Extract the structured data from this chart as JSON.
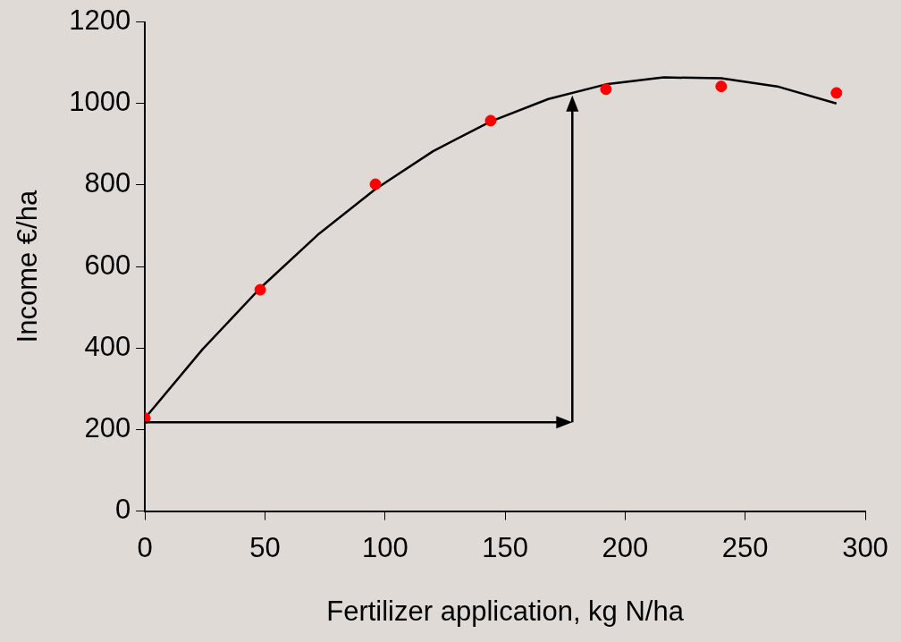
{
  "chart_data": {
    "type": "scatter",
    "xlabel": "Fertilizer application, kg N/ha",
    "ylabel": "Income €/ha",
    "xlim": [
      0,
      300
    ],
    "xticks": [
      0,
      50,
      100,
      150,
      200,
      250,
      300
    ],
    "ylim": [
      0,
      1200
    ],
    "yticks": [
      0,
      200,
      400,
      600,
      800,
      1000,
      1200
    ],
    "grid": false,
    "marker": "circle",
    "series": [
      {
        "type": "scatter",
        "color": "#ff0000",
        "x": [
          0,
          48,
          96,
          144,
          192,
          240,
          288
        ],
        "values": [
          228,
          543,
          802,
          958,
          1035,
          1042,
          1026
        ]
      },
      {
        "type": "line",
        "color": "#000000",
        "marker": "none",
        "line_style": "solid",
        "x": [
          0,
          24,
          48,
          72,
          96,
          120,
          144,
          168,
          192,
          216,
          240,
          264,
          288
        ],
        "values": [
          228,
          397,
          547,
          678,
          790,
          883,
          956,
          1011,
          1047,
          1064,
          1062,
          1041,
          1000
        ]
      }
    ]
  }
}
